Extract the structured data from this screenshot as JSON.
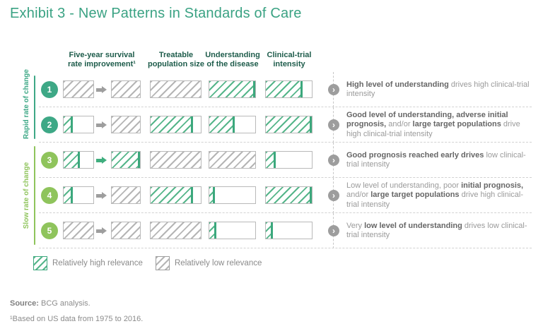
{
  "title": "Exhibit 3 - New Patterns in Standards of Care",
  "columns": [
    "Five-year survival rate improvement¹",
    "Treatable population size",
    "Understanding of the disease",
    "Clinical-trial intensity"
  ],
  "groups": [
    {
      "label": "Rapid rate of change",
      "color": "#3ea886",
      "rows": [
        1,
        2
      ]
    },
    {
      "label": "Slow rate of change",
      "color": "#8fc45c",
      "rows": [
        3,
        5
      ]
    }
  ],
  "colors": {
    "title": "#3aa283",
    "column_header": "#1e5c4b",
    "high_relevance_green": "#3ca87d",
    "low_relevance_gray": "#b5b5b5",
    "rapid_group": "#3ea886",
    "slow_group": "#8fc45c",
    "chevron_circle": "#9d9d9d",
    "description_bold": "#666666",
    "description_regular": "#9a9a9a"
  },
  "chart_data": {
    "type": "table",
    "relevance_encoding": {
      "high": "green hatched fill",
      "low": "gray hatched fill"
    },
    "rows": [
      {
        "number": 1,
        "rate_group": "rapid",
        "arrow": "gray",
        "bars": {
          "survival_before": {
            "pct": 100,
            "relevance": "low"
          },
          "survival_after": {
            "pct": 100,
            "relevance": "low"
          },
          "treatable_population": {
            "pct": 100,
            "relevance": "low"
          },
          "understanding": {
            "pct": 100,
            "relevance": "high"
          },
          "clinical_trial_intensity": {
            "pct": 80,
            "relevance": "high"
          }
        },
        "description": [
          {
            "text": "High level of understanding",
            "bold": true
          },
          {
            "text": " drives high clinical-trial intensity",
            "bold": false
          }
        ]
      },
      {
        "number": 2,
        "rate_group": "rapid",
        "arrow": "gray",
        "bars": {
          "survival_before": {
            "pct": 30,
            "relevance": "high"
          },
          "survival_after": {
            "pct": 100,
            "relevance": "low"
          },
          "treatable_population": {
            "pct": 85,
            "relevance": "high"
          },
          "understanding": {
            "pct": 55,
            "relevance": "high"
          },
          "clinical_trial_intensity": {
            "pct": 100,
            "relevance": "high"
          }
        },
        "description": [
          {
            "text": "Good level of understanding, adverse initial prognosis,",
            "bold": true
          },
          {
            "text": " and/or ",
            "bold": false
          },
          {
            "text": "large target populations",
            "bold": true
          },
          {
            "text": " drive high clinical-trial intensity",
            "bold": false
          }
        ]
      },
      {
        "number": 3,
        "rate_group": "slow",
        "arrow": "green",
        "bars": {
          "survival_before": {
            "pct": 55,
            "relevance": "high"
          },
          "survival_after": {
            "pct": 100,
            "relevance": "high"
          },
          "treatable_population": {
            "pct": 100,
            "relevance": "low"
          },
          "understanding": {
            "pct": 100,
            "relevance": "low"
          },
          "clinical_trial_intensity": {
            "pct": 22,
            "relevance": "high"
          }
        },
        "description": [
          {
            "text": "Good prognosis reached early drives",
            "bold": true
          },
          {
            "text": " low clinical-trial intensity",
            "bold": false
          }
        ]
      },
      {
        "number": 4,
        "rate_group": "slow",
        "arrow": "gray",
        "bars": {
          "survival_before": {
            "pct": 30,
            "relevance": "high"
          },
          "survival_after": {
            "pct": 100,
            "relevance": "low"
          },
          "treatable_population": {
            "pct": 85,
            "relevance": "high"
          },
          "understanding": {
            "pct": 12,
            "relevance": "high"
          },
          "clinical_trial_intensity": {
            "pct": 100,
            "relevance": "high"
          }
        },
        "description": [
          {
            "text": "Low level of understanding, poor ",
            "bold": false
          },
          {
            "text": "initial prognosis,",
            "bold": true
          },
          {
            "text": " and/or ",
            "bold": false
          },
          {
            "text": "large target populations",
            "bold": true
          },
          {
            "text": " drive high clinical-trial intensity",
            "bold": false
          }
        ]
      },
      {
        "number": 5,
        "rate_group": "slow",
        "arrow": "gray",
        "bars": {
          "survival_before": {
            "pct": 100,
            "relevance": "low"
          },
          "survival_after": {
            "pct": 100,
            "relevance": "low"
          },
          "treatable_population": {
            "pct": 100,
            "relevance": "low"
          },
          "understanding": {
            "pct": 15,
            "relevance": "high"
          },
          "clinical_trial_intensity": {
            "pct": 15,
            "relevance": "high"
          }
        },
        "description": [
          {
            "text": "Very ",
            "bold": false
          },
          {
            "text": "low level of understanding",
            "bold": true
          },
          {
            "text": " drives low clinical-trial intensity",
            "bold": false
          }
        ]
      }
    ]
  },
  "legend": [
    {
      "label": "Relatively high relevance",
      "relevance": "high"
    },
    {
      "label": "Relatively low relevance",
      "relevance": "low"
    }
  ],
  "source_label": "Source:",
  "source_text": " BCG analysis.",
  "footnote": "¹Based on US data from 1975 to 2016."
}
